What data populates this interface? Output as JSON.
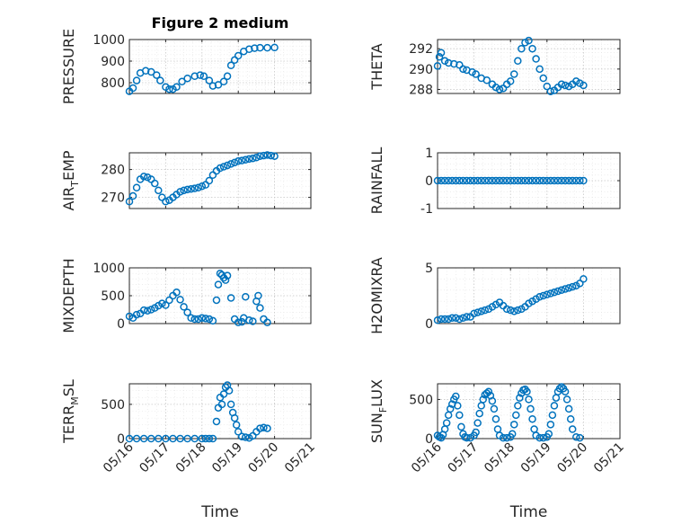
{
  "figure_title": "Figure 2 medium",
  "colors": {
    "marker": "#0072bd",
    "axis": "#262626",
    "grid": "#c8c8c8"
  },
  "chart_data": [
    {
      "id": "pressure",
      "type": "scatter",
      "title": "Figure 2 medium",
      "ylabel": "PRESSURE",
      "ylabel_parts": [
        [
          "PRESSURE",
          ""
        ]
      ],
      "xlabel": "",
      "xlim": [
        0,
        5
      ],
      "ylim": [
        750,
        1000
      ],
      "yticks": [
        800,
        900,
        1000
      ],
      "xticks": [
        0,
        1,
        2,
        3,
        4,
        5
      ],
      "xticklabels": [
        "05/16",
        "05/17",
        "05/18",
        "05/19",
        "05/20",
        "05/21"
      ],
      "show_xticklabels": false,
      "grid": true,
      "x": [
        0.0,
        0.1,
        0.2,
        0.3,
        0.45,
        0.6,
        0.75,
        0.85,
        1.0,
        1.1,
        1.2,
        1.3,
        1.45,
        1.6,
        1.8,
        1.95,
        2.05,
        2.2,
        2.3,
        2.45,
        2.6,
        2.7,
        2.8,
        2.9,
        3.0,
        3.15,
        3.3,
        3.45,
        3.6,
        3.8,
        4.0
      ],
      "y": [
        760,
        775,
        810,
        845,
        855,
        850,
        835,
        810,
        780,
        770,
        770,
        780,
        805,
        820,
        830,
        835,
        830,
        810,
        785,
        790,
        805,
        830,
        880,
        905,
        925,
        945,
        955,
        960,
        962,
        962,
        963
      ]
    },
    {
      "id": "theta",
      "type": "scatter",
      "ylabel": "THETA",
      "ylabel_parts": [
        [
          "THETA",
          ""
        ]
      ],
      "xlabel": "",
      "xlim": [
        0,
        5
      ],
      "ylim": [
        287.6,
        292.9
      ],
      "yticks": [
        288,
        290,
        292
      ],
      "xticks": [
        0,
        1,
        2,
        3,
        4,
        5
      ],
      "xticklabels": [
        "05/16",
        "05/17",
        "05/18",
        "05/19",
        "05/20",
        "05/21"
      ],
      "show_xticklabels": false,
      "grid": true,
      "x": [
        0.0,
        0.05,
        0.1,
        0.2,
        0.3,
        0.45,
        0.6,
        0.7,
        0.8,
        0.95,
        1.05,
        1.2,
        1.35,
        1.5,
        1.6,
        1.7,
        1.8,
        1.9,
        2.0,
        2.1,
        2.2,
        2.3,
        2.4,
        2.5,
        2.6,
        2.7,
        2.8,
        2.9,
        3.0,
        3.1,
        3.2,
        3.3,
        3.4,
        3.5,
        3.6,
        3.7,
        3.8,
        3.9,
        4.0
      ],
      "y": [
        290.3,
        291.2,
        291.6,
        290.8,
        290.6,
        290.5,
        290.4,
        290.0,
        289.9,
        289.7,
        289.5,
        289.1,
        288.9,
        288.5,
        288.2,
        288.0,
        288.1,
        288.5,
        288.8,
        289.5,
        290.8,
        292.0,
        292.6,
        292.8,
        292.0,
        291.0,
        290.0,
        289.1,
        288.3,
        287.8,
        287.9,
        288.2,
        288.5,
        288.4,
        288.3,
        288.5,
        288.8,
        288.6,
        288.4
      ]
    },
    {
      "id": "air_temp",
      "type": "scatter",
      "ylabel": "AIR_TEMP",
      "ylabel_parts": [
        [
          "AIR",
          ""
        ],
        [
          "T",
          "sub"
        ],
        [
          "EMP",
          ""
        ]
      ],
      "xlabel": "",
      "xlim": [
        0,
        5
      ],
      "ylim": [
        266,
        286
      ],
      "yticks": [
        270,
        280
      ],
      "xticks": [
        0,
        1,
        2,
        3,
        4,
        5
      ],
      "xticklabels": [
        "05/16",
        "05/17",
        "05/18",
        "05/19",
        "05/20",
        "05/21"
      ],
      "show_xticklabels": false,
      "grid": true,
      "x": [
        0.0,
        0.1,
        0.2,
        0.3,
        0.4,
        0.5,
        0.6,
        0.7,
        0.8,
        0.9,
        1.0,
        1.1,
        1.2,
        1.3,
        1.4,
        1.5,
        1.6,
        1.7,
        1.8,
        1.9,
        2.0,
        2.1,
        2.2,
        2.3,
        2.4,
        2.5,
        2.6,
        2.7,
        2.8,
        2.9,
        3.0,
        3.1,
        3.2,
        3.3,
        3.4,
        3.5,
        3.6,
        3.7,
        3.8,
        3.9,
        4.0
      ],
      "y": [
        268.5,
        270.5,
        273.5,
        276.5,
        277.5,
        277.2,
        276.5,
        275.0,
        272.5,
        270.0,
        268.5,
        269.0,
        270.0,
        271.0,
        272.0,
        272.5,
        272.8,
        273.0,
        273.2,
        273.5,
        274.0,
        274.5,
        276.0,
        278.0,
        279.5,
        280.5,
        281.0,
        281.5,
        282.0,
        282.5,
        283.0,
        283.2,
        283.5,
        283.8,
        284.0,
        284.3,
        284.8,
        285.0,
        285.2,
        285.0,
        284.8
      ]
    },
    {
      "id": "rainfall",
      "type": "scatter",
      "ylabel": "RAINFALL",
      "ylabel_parts": [
        [
          "RAINFALL",
          ""
        ]
      ],
      "xlabel": "",
      "xlim": [
        0,
        5
      ],
      "ylim": [
        -1,
        1
      ],
      "yticks": [
        -1,
        0,
        1
      ],
      "xticks": [
        0,
        1,
        2,
        3,
        4,
        5
      ],
      "xticklabels": [
        "05/16",
        "05/17",
        "05/18",
        "05/19",
        "05/20",
        "05/21"
      ],
      "show_xticklabels": false,
      "grid": true,
      "x": [
        0.0,
        0.1,
        0.2,
        0.3,
        0.4,
        0.5,
        0.6,
        0.7,
        0.8,
        0.9,
        1.0,
        1.1,
        1.2,
        1.3,
        1.4,
        1.5,
        1.6,
        1.7,
        1.8,
        1.9,
        2.0,
        2.1,
        2.2,
        2.3,
        2.4,
        2.5,
        2.6,
        2.7,
        2.8,
        2.9,
        3.0,
        3.1,
        3.2,
        3.3,
        3.4,
        3.5,
        3.6,
        3.7,
        3.8,
        3.9,
        4.0
      ],
      "y": [
        0,
        0,
        0,
        0,
        0,
        0,
        0,
        0,
        0,
        0,
        0,
        0,
        0,
        0,
        0,
        0,
        0,
        0,
        0,
        0,
        0,
        0,
        0,
        0,
        0,
        0,
        0,
        0,
        0,
        0,
        0,
        0,
        0,
        0,
        0,
        0,
        0,
        0,
        0,
        0,
        0
      ]
    },
    {
      "id": "mixdepth",
      "type": "scatter",
      "ylabel": "MIXDEPTH",
      "ylabel_parts": [
        [
          "MIXDEPTH",
          ""
        ]
      ],
      "xlabel": "",
      "xlim": [
        0,
        5
      ],
      "ylim": [
        0,
        1000
      ],
      "yticks": [
        0,
        500,
        1000
      ],
      "xticks": [
        0,
        1,
        2,
        3,
        4,
        5
      ],
      "xticklabels": [
        "05/16",
        "05/17",
        "05/18",
        "05/19",
        "05/20",
        "05/21"
      ],
      "show_xticklabels": false,
      "grid": true,
      "x": [
        0.0,
        0.1,
        0.2,
        0.3,
        0.4,
        0.5,
        0.6,
        0.7,
        0.8,
        0.9,
        1.0,
        1.1,
        1.2,
        1.3,
        1.4,
        1.5,
        1.6,
        1.7,
        1.8,
        1.9,
        2.0,
        2.1,
        2.2,
        2.3,
        2.4,
        2.45,
        2.5,
        2.55,
        2.6,
        2.65,
        2.7,
        2.8,
        2.9,
        3.0,
        3.1,
        3.15,
        3.2,
        3.3,
        3.4,
        3.5,
        3.55,
        3.6,
        3.7,
        3.8
      ],
      "y": [
        130,
        100,
        160,
        180,
        240,
        230,
        250,
        280,
        320,
        360,
        330,
        420,
        500,
        560,
        430,
        300,
        200,
        100,
        80,
        80,
        100,
        90,
        80,
        50,
        420,
        700,
        900,
        870,
        820,
        780,
        860,
        460,
        80,
        20,
        30,
        100,
        480,
        60,
        40,
        400,
        500,
        280,
        80,
        20
      ]
    },
    {
      "id": "h2omixra",
      "type": "scatter",
      "ylabel": "H2OMIXRA",
      "ylabel_parts": [
        [
          "H2OMIXRA",
          ""
        ]
      ],
      "xlabel": "",
      "xlim": [
        0,
        5
      ],
      "ylim": [
        0,
        5
      ],
      "yticks": [
        0,
        5
      ],
      "xticks": [
        0,
        1,
        2,
        3,
        4,
        5
      ],
      "xticklabels": [
        "05/16",
        "05/17",
        "05/18",
        "05/19",
        "05/20",
        "05/21"
      ],
      "show_xticklabels": false,
      "grid": true,
      "x": [
        0.0,
        0.1,
        0.2,
        0.3,
        0.4,
        0.5,
        0.6,
        0.7,
        0.8,
        0.9,
        1.0,
        1.1,
        1.2,
        1.3,
        1.4,
        1.5,
        1.6,
        1.7,
        1.8,
        1.9,
        2.0,
        2.1,
        2.2,
        2.3,
        2.4,
        2.5,
        2.6,
        2.7,
        2.8,
        2.9,
        3.0,
        3.1,
        3.2,
        3.3,
        3.4,
        3.5,
        3.6,
        3.7,
        3.8,
        3.9,
        4.0
      ],
      "y": [
        0.3,
        0.4,
        0.4,
        0.4,
        0.5,
        0.5,
        0.4,
        0.5,
        0.6,
        0.6,
        0.9,
        1.0,
        1.1,
        1.2,
        1.3,
        1.5,
        1.7,
        1.9,
        1.6,
        1.3,
        1.2,
        1.1,
        1.2,
        1.3,
        1.5,
        1.8,
        2.0,
        2.2,
        2.4,
        2.5,
        2.6,
        2.7,
        2.8,
        2.9,
        3.0,
        3.1,
        3.2,
        3.3,
        3.4,
        3.6,
        4.0
      ]
    },
    {
      "id": "terr_msl",
      "type": "scatter",
      "ylabel": "TERR_MSL",
      "ylabel_parts": [
        [
          "TERR",
          ""
        ],
        [
          "M",
          "sub"
        ],
        [
          "SL",
          ""
        ]
      ],
      "xlabel": "Time",
      "xlim": [
        0,
        5
      ],
      "ylim": [
        0,
        800
      ],
      "yticks": [
        0,
        500
      ],
      "xticks": [
        0,
        1,
        2,
        3,
        4,
        5
      ],
      "xticklabels": [
        "05/16",
        "05/17",
        "05/18",
        "05/19",
        "05/20",
        "05/21"
      ],
      "show_xticklabels": true,
      "grid": true,
      "x": [
        0.0,
        0.2,
        0.4,
        0.6,
        0.8,
        1.0,
        1.2,
        1.4,
        1.6,
        1.8,
        2.0,
        2.1,
        2.2,
        2.3,
        2.4,
        2.45,
        2.5,
        2.55,
        2.6,
        2.65,
        2.7,
        2.75,
        2.8,
        2.85,
        2.9,
        2.95,
        3.0,
        3.1,
        3.2,
        3.3,
        3.4,
        3.5,
        3.6,
        3.7,
        3.8
      ],
      "y": [
        0,
        0,
        0,
        0,
        0,
        0,
        0,
        0,
        0,
        0,
        0,
        0,
        0,
        0,
        250,
        450,
        600,
        500,
        650,
        750,
        780,
        700,
        500,
        380,
        300,
        200,
        100,
        30,
        20,
        10,
        40,
        100,
        150,
        160,
        150
      ]
    },
    {
      "id": "sun_flux",
      "type": "scatter",
      "ylabel": "SUN_FLUX",
      "ylabel_parts": [
        [
          "SUN",
          ""
        ],
        [
          "F",
          "sub"
        ],
        [
          "LUX",
          ""
        ]
      ],
      "xlabel": "Time",
      "xlim": [
        0,
        5
      ],
      "ylim": [
        0,
        700
      ],
      "yticks": [
        0,
        500
      ],
      "xticks": [
        0,
        1,
        2,
        3,
        4,
        5
      ],
      "xticklabels": [
        "05/16",
        "05/17",
        "05/18",
        "05/19",
        "05/20",
        "05/21"
      ],
      "show_xticklabels": true,
      "grid": true,
      "x": [
        0.0,
        0.05,
        0.1,
        0.15,
        0.2,
        0.25,
        0.3,
        0.35,
        0.4,
        0.45,
        0.5,
        0.55,
        0.6,
        0.65,
        0.7,
        0.75,
        0.8,
        0.9,
        1.0,
        1.05,
        1.1,
        1.15,
        1.2,
        1.25,
        1.3,
        1.35,
        1.4,
        1.45,
        1.5,
        1.55,
        1.6,
        1.65,
        1.7,
        1.8,
        1.9,
        2.0,
        2.05,
        2.1,
        2.15,
        2.2,
        2.25,
        2.3,
        2.35,
        2.4,
        2.45,
        2.5,
        2.55,
        2.6,
        2.65,
        2.7,
        2.8,
        2.9,
        3.0,
        3.05,
        3.1,
        3.15,
        3.2,
        3.25,
        3.3,
        3.35,
        3.4,
        3.45,
        3.5,
        3.55,
        3.6,
        3.65,
        3.7,
        3.8,
        3.9
      ],
      "y": [
        40,
        20,
        10,
        50,
        120,
        200,
        300,
        380,
        440,
        500,
        540,
        420,
        300,
        150,
        60,
        20,
        10,
        10,
        40,
        80,
        200,
        320,
        420,
        500,
        560,
        580,
        600,
        550,
        480,
        380,
        250,
        120,
        40,
        10,
        10,
        20,
        60,
        180,
        300,
        420,
        520,
        580,
        620,
        630,
        600,
        500,
        380,
        250,
        120,
        40,
        10,
        10,
        20,
        60,
        180,
        300,
        420,
        520,
        600,
        640,
        660,
        640,
        600,
        500,
        380,
        250,
        120,
        20,
        10
      ]
    }
  ]
}
